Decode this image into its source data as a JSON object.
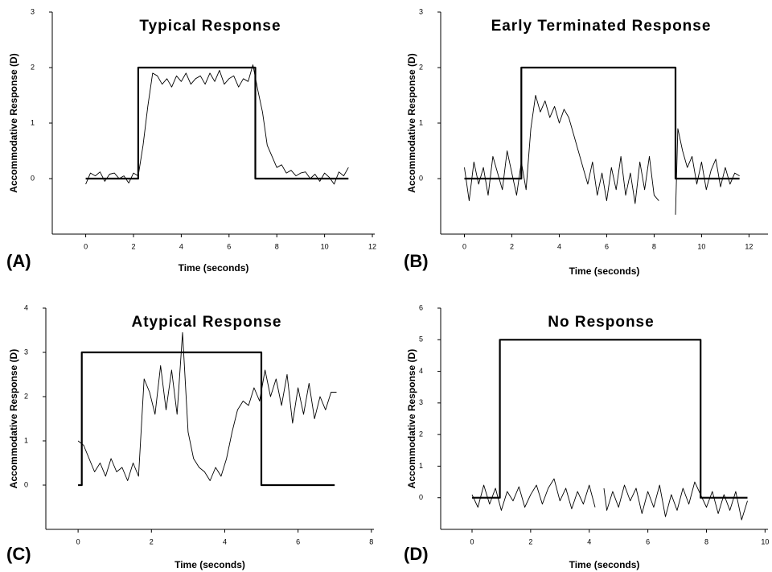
{
  "chart_data": [
    {
      "type": "line",
      "title": "Typical Response",
      "panel_label": "(A)",
      "xlabel": "Time (seconds)",
      "ylabel": "Accommodative Response (D)",
      "xlim": [
        -1.4,
        12.1
      ],
      "ylim": [
        -1,
        3
      ],
      "xticks": [
        0,
        2,
        4,
        6,
        8,
        10,
        12
      ],
      "yticks": [
        0,
        1,
        2,
        3
      ],
      "series": [
        {
          "color": "#000000",
          "x": [
            0,
            2.2,
            2.2,
            7.1,
            7.1,
            11
          ],
          "values": [
            0,
            0,
            2,
            2,
            0,
            0
          ]
        },
        {
          "color": "#000000",
          "x": [
            0,
            0.2,
            0.4,
            0.6,
            0.8,
            1,
            1.2,
            1.4,
            1.6,
            1.8,
            2,
            2.2,
            2.4,
            2.6,
            2.8,
            3,
            3.2,
            3.4,
            3.6,
            3.8,
            4,
            4.2,
            4.4,
            4.6,
            4.8,
            5,
            5.2,
            5.4,
            5.6,
            5.8,
            6,
            6.2,
            6.4,
            6.6,
            6.8,
            7,
            7.2,
            7.4,
            7.6,
            7.8,
            8,
            8.2,
            8.4,
            8.6,
            8.8,
            9,
            9.2,
            9.4,
            9.6,
            9.8,
            10,
            10.2,
            10.4,
            10.6,
            10.8,
            11
          ],
          "values": [
            -0.1,
            0.1,
            0.05,
            0.12,
            -0.05,
            0.08,
            0.1,
            0,
            0.05,
            -0.08,
            0.1,
            0.05,
            0.6,
            1.3,
            1.9,
            1.85,
            1.7,
            1.8,
            1.65,
            1.85,
            1.75,
            1.9,
            1.7,
            1.8,
            1.85,
            1.7,
            1.9,
            1.75,
            1.95,
            1.7,
            1.8,
            1.85,
            1.65,
            1.8,
            1.75,
            2.05,
            1.6,
            1.2,
            0.6,
            0.4,
            0.2,
            0.25,
            0.1,
            0.15,
            0.05,
            0.1,
            0.12,
            0,
            0.08,
            -0.05,
            0.1,
            0.02,
            -0.1,
            0.12,
            0.05,
            0.2
          ]
        }
      ]
    },
    {
      "type": "line",
      "title": "Early Terminated Response",
      "panel_label": "(B)",
      "xlabel": "Time (seconds)",
      "ylabel": "Accommodative Response (D)",
      "xlim": [
        -1,
        12.8
      ],
      "ylim": [
        -1,
        3
      ],
      "xticks": [
        0,
        2,
        4,
        6,
        8,
        10,
        12
      ],
      "yticks": [
        0,
        1,
        2,
        3
      ],
      "series": [
        {
          "color": "#000000",
          "x": [
            0,
            2.4,
            2.4,
            8.9,
            8.9,
            11.6
          ],
          "values": [
            0,
            0,
            2,
            2,
            0,
            0
          ]
        },
        {
          "color": "#000000",
          "x": [
            0,
            0.2,
            0.4,
            0.6,
            0.8,
            1,
            1.2,
            1.4,
            1.6,
            1.8,
            2,
            2.2,
            2.4,
            2.6,
            2.8,
            3,
            3.2,
            3.4,
            3.6,
            3.8,
            4,
            4.2,
            4.4,
            4.6,
            4.8,
            5,
            5.2,
            5.4,
            5.6,
            5.8,
            6,
            6.2,
            6.4,
            6.6,
            6.8,
            7,
            7.2,
            7.4,
            7.6,
            7.8,
            8,
            8.2,
            8.3,
            8.9,
            9,
            9.2,
            9.4,
            9.6,
            9.8,
            10,
            10.2,
            10.4,
            10.6,
            10.8,
            11,
            11.2,
            11.4,
            11.6
          ],
          "values": [
            0.2,
            -0.4,
            0.3,
            -0.1,
            0.2,
            -0.3,
            0.4,
            0.1,
            -0.2,
            0.5,
            0.1,
            -0.3,
            0.3,
            -0.2,
            0.9,
            1.5,
            1.2,
            1.4,
            1.1,
            1.3,
            1,
            1.25,
            1.1,
            0.8,
            0.5,
            0.2,
            -0.1,
            0.3,
            -0.3,
            0.1,
            -0.4,
            0.2,
            -0.2,
            0.4,
            -0.3,
            0.1,
            -0.45,
            0.3,
            -0.2,
            0.4,
            -0.3,
            -0.4,
            null,
            -0.65,
            0.9,
            0.5,
            0.2,
            0.4,
            -0.1,
            0.3,
            -0.2,
            0.15,
            0.35,
            -0.15,
            0.2,
            -0.1,
            0.1,
            0.05
          ]
        }
      ]
    },
    {
      "type": "line",
      "title": "Atypical Response",
      "panel_label": "(C)",
      "xlabel": "Time (seconds)",
      "ylabel": "Accommodative Response (D)",
      "xlim": [
        -0.88,
        8.07
      ],
      "ylim": [
        -1,
        4
      ],
      "xticks": [
        0,
        2,
        4,
        6,
        8
      ],
      "yticks": [
        0,
        1,
        2,
        3,
        4
      ],
      "series": [
        {
          "color": "#000000",
          "x": [
            0,
            0.1,
            0.1,
            5,
            5,
            7
          ],
          "values": [
            0,
            0,
            3,
            3,
            0,
            0
          ]
        },
        {
          "color": "#000000",
          "x": [
            0,
            0.15,
            0.3,
            0.45,
            0.6,
            0.75,
            0.9,
            1.05,
            1.2,
            1.35,
            1.5,
            1.65,
            1.8,
            1.95,
            2.1,
            2.25,
            2.4,
            2.55,
            2.7,
            2.85,
            3,
            3.15,
            3.3,
            3.45,
            3.6,
            3.75,
            3.9,
            4.05,
            4.2,
            4.35,
            4.5,
            4.65,
            4.8,
            4.95,
            5.1,
            5.25,
            5.4,
            5.55,
            5.7,
            5.85,
            6,
            6.15,
            6.3,
            6.45,
            6.6,
            6.75,
            6.9,
            7.05
          ],
          "values": [
            1,
            0.9,
            0.6,
            0.3,
            0.5,
            0.2,
            0.6,
            0.3,
            0.4,
            0.1,
            0.5,
            0.2,
            2.4,
            2.1,
            1.6,
            2.7,
            1.7,
            2.6,
            1.6,
            3.45,
            1.2,
            0.6,
            0.4,
            0.3,
            0.1,
            0.4,
            0.2,
            0.6,
            1.2,
            1.7,
            1.9,
            1.8,
            2.2,
            1.9,
            2.6,
            2,
            2.4,
            1.8,
            2.5,
            1.4,
            2.2,
            1.6,
            2.3,
            1.5,
            2,
            1.7,
            2.1,
            2.1
          ]
        }
      ]
    },
    {
      "type": "line",
      "title": "No Response",
      "panel_label": "(D)",
      "xlabel": "Time (seconds)",
      "ylabel": "Accommodative Response (D)",
      "xlim": [
        -1.07,
        10.1
      ],
      "ylim": [
        -1,
        6
      ],
      "xticks": [
        0,
        2,
        4,
        6,
        8,
        10
      ],
      "yticks": [
        0,
        1,
        2,
        3,
        4,
        5,
        6
      ],
      "series": [
        {
          "color": "#000000",
          "x": [
            0,
            0.95,
            0.95,
            7.8,
            7.8,
            9.4
          ],
          "values": [
            0,
            0,
            5,
            5,
            0,
            0
          ]
        },
        {
          "color": "#000000",
          "x": [
            0,
            0.2,
            0.4,
            0.6,
            0.8,
            1,
            1.2,
            1.4,
            1.6,
            1.8,
            2,
            2.2,
            2.4,
            2.6,
            2.8,
            3,
            3.2,
            3.4,
            3.6,
            3.8,
            4,
            4.2,
            4.3,
            4.5,
            4.6,
            4.8,
            5,
            5.2,
            5.4,
            5.6,
            5.8,
            6,
            6.2,
            6.4,
            6.6,
            6.8,
            7,
            7.2,
            7.4,
            7.6,
            7.8,
            8,
            8.2,
            8.4,
            8.6,
            8.8,
            9,
            9.2,
            9.4
          ],
          "values": [
            0.1,
            -0.3,
            0.4,
            -0.2,
            0.3,
            -0.4,
            0.2,
            -0.1,
            0.35,
            -0.3,
            0.1,
            0.4,
            -0.2,
            0.3,
            0.6,
            -0.1,
            0.3,
            -0.35,
            0.2,
            -0.2,
            0.4,
            -0.3,
            null,
            0.3,
            -0.4,
            0.2,
            -0.3,
            0.4,
            -0.1,
            0.3,
            -0.5,
            0.2,
            -0.3,
            0.4,
            -0.6,
            0.1,
            -0.4,
            0.3,
            -0.2,
            0.5,
            0.1,
            -0.3,
            0.2,
            -0.5,
            0.1,
            -0.4,
            0.2,
            -0.7,
            -0.1
          ]
        }
      ]
    }
  ]
}
